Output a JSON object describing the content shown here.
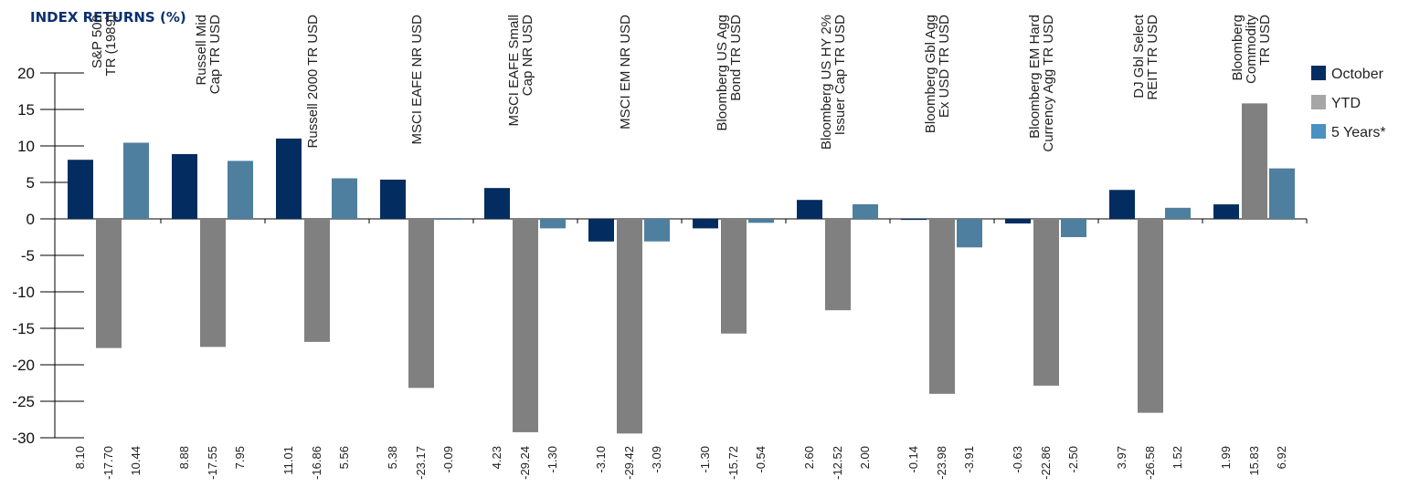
{
  "chart_data": {
    "type": "bar",
    "title": "INDEX RETURNS (%)",
    "xlabel": "",
    "ylabel": "",
    "ylim": [
      -30,
      20
    ],
    "yticks": [
      20,
      15,
      10,
      5,
      0,
      -5,
      -10,
      -15,
      -20,
      -25,
      -30
    ],
    "legend_position": "right",
    "categories": [
      "S&P 500 TR (1989)",
      "Russell Mid Cap TR USD",
      "Russell 2000 TR USD",
      "MSCI EAFE NR USD",
      "MSCI EAFE Small Cap NR USD",
      "MSCI EM NR USD",
      "Bloomberg US Agg Bond TR USD",
      "Bloomberg US HY 2% Issuer Cap TR USD",
      "Bloomberg Gbl Agg Ex USD TR USD",
      "Bloomberg EM Hard Currency Agg TR USD",
      "DJ Gbl Select REIT TR USD",
      "Bloomberg Commodity TR USD"
    ],
    "category_label_lines": [
      [
        "S&P 500",
        "TR (1989)"
      ],
      [
        "Russell Mid",
        "Cap TR USD"
      ],
      [
        "Russell 2000 TR USD"
      ],
      [
        "MSCI EAFE NR USD"
      ],
      [
        "MSCI EAFE Small",
        "Cap NR USD"
      ],
      [
        "MSCI EM NR USD"
      ],
      [
        "Bloomberg US Agg",
        "Bond TR USD"
      ],
      [
        "Bloomberg US HY 2%",
        "Issuer Cap TR USD"
      ],
      [
        "Bloomberg Gbl Agg",
        "Ex USD TR USD"
      ],
      [
        "Bloomberg EM Hard",
        "Currency Agg TR USD"
      ],
      [
        "DJ Gbl Select",
        "REIT TR USD"
      ],
      [
        "Bloomberg",
        "Commodity",
        "TR USD"
      ]
    ],
    "series": [
      {
        "name": "October",
        "color": "#032d60",
        "legend_color": "#032d60",
        "values": [
          8.1,
          8.88,
          11.01,
          5.38,
          4.23,
          -3.1,
          -1.3,
          2.6,
          -0.14,
          -0.63,
          3.97,
          1.99
        ],
        "labels": [
          "8.10",
          "8.88",
          "11.01",
          "5.38",
          "4.23",
          "-3.10",
          "-1.30",
          "2.60",
          "-0.14",
          "-0.63",
          "3.97",
          "1.99"
        ]
      },
      {
        "name": "YTD",
        "color": "#808080",
        "legend_color": "#a6a6a6",
        "values": [
          -17.7,
          -17.55,
          -16.86,
          -23.17,
          -29.24,
          -29.42,
          -15.72,
          -12.52,
          -23.98,
          -22.86,
          -26.58,
          15.83
        ],
        "labels": [
          "-17.70",
          "-17.55",
          "-16.86",
          "-23.17",
          "-29.24",
          "-29.42",
          "-15.72",
          "-12.52",
          "-23.98",
          "-22.86",
          "-26.58",
          "15.83"
        ]
      },
      {
        "name": "5 Years*",
        "color": "#4e7f9e",
        "legend_color": "#4a90c2",
        "values": [
          10.44,
          7.95,
          5.56,
          -0.09,
          -1.3,
          -3.09,
          -0.54,
          2.0,
          -3.91,
          -2.5,
          1.52,
          6.92
        ],
        "labels": [
          "10.44",
          "7.95",
          "5.56",
          "-0.09",
          "-1.30",
          "-3.09",
          "-0.54",
          "2.00",
          "-3.91",
          "-2.50",
          "1.52",
          "6.92"
        ]
      }
    ]
  }
}
